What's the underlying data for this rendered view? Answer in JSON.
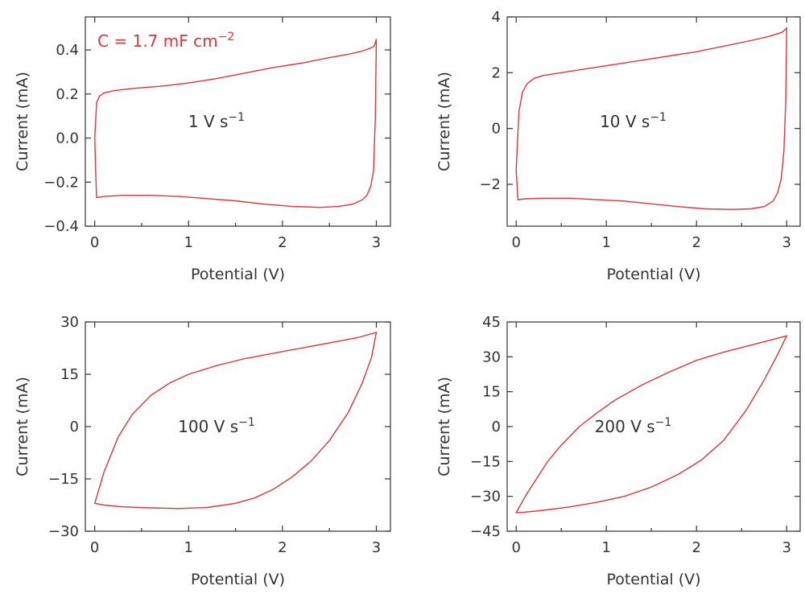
{
  "colors": {
    "curve": "#d9363e",
    "axis": "#333333"
  },
  "chart_data": [
    {
      "type": "line",
      "scan_rate_label": "1 V s−1",
      "capacitance_label": "C = 1.7 mF cm−2",
      "xlabel": "Potential (V)",
      "ylabel": "Current (mA)",
      "xlim": [
        -0.1,
        3.15
      ],
      "ylim": [
        -0.4,
        0.55
      ],
      "xticks": [
        0,
        1,
        2,
        3
      ],
      "yticks": [
        -0.4,
        -0.2,
        0.0,
        0.2,
        0.4
      ],
      "ytick_labels": [
        "−0.4",
        "−0.2",
        "0.0",
        "0.2",
        "0.4"
      ],
      "series": [
        {
          "x": [
            0,
            0.02,
            0.05,
            0.1,
            0.2,
            0.4,
            0.7,
            1.0,
            1.3,
            1.6,
            1.9,
            2.2,
            2.5,
            2.7,
            2.85,
            2.95,
            2.98,
            3.0,
            2.99,
            2.97,
            2.94,
            2.9,
            2.85,
            2.75,
            2.6,
            2.4,
            2.1,
            1.8,
            1.5,
            1.2,
            0.9,
            0.6,
            0.3,
            0.1,
            0.02,
            0.01,
            0
          ],
          "y": [
            0.0,
            0.16,
            0.19,
            0.205,
            0.215,
            0.225,
            0.235,
            0.25,
            0.27,
            0.295,
            0.32,
            0.34,
            0.365,
            0.38,
            0.395,
            0.41,
            0.42,
            0.45,
            0.1,
            -0.15,
            -0.22,
            -0.26,
            -0.28,
            -0.3,
            -0.31,
            -0.315,
            -0.31,
            -0.3,
            -0.285,
            -0.275,
            -0.265,
            -0.26,
            -0.26,
            -0.265,
            -0.27,
            -0.15,
            0.0
          ]
        }
      ]
    },
    {
      "type": "line",
      "scan_rate_label": "10 V s−1",
      "xlabel": "Potential (V)",
      "ylabel": "Current (mA)",
      "xlim": [
        -0.1,
        3.15
      ],
      "ylim": [
        -3.5,
        4.0
      ],
      "xticks": [
        0,
        1,
        2,
        3
      ],
      "yticks": [
        -2,
        0,
        2,
        4
      ],
      "ytick_labels": [
        "−2",
        "0",
        "2",
        "4"
      ],
      "series": [
        {
          "x": [
            0,
            0.03,
            0.07,
            0.12,
            0.2,
            0.3,
            0.5,
            0.8,
            1.1,
            1.4,
            1.7,
            2.0,
            2.3,
            2.6,
            2.8,
            2.95,
            3.0,
            2.99,
            2.97,
            2.94,
            2.9,
            2.85,
            2.75,
            2.6,
            2.4,
            2.1,
            1.8,
            1.5,
            1.2,
            0.9,
            0.6,
            0.3,
            0.1,
            0.02,
            0
          ],
          "y": [
            -1.5,
            0.6,
            1.3,
            1.6,
            1.8,
            1.9,
            2.0,
            2.15,
            2.3,
            2.45,
            2.6,
            2.75,
            2.95,
            3.15,
            3.3,
            3.45,
            3.6,
            1.0,
            -0.8,
            -1.8,
            -2.3,
            -2.6,
            -2.8,
            -2.88,
            -2.9,
            -2.88,
            -2.8,
            -2.7,
            -2.6,
            -2.55,
            -2.5,
            -2.5,
            -2.52,
            -2.55,
            -1.5
          ]
        }
      ]
    },
    {
      "type": "line",
      "scan_rate_label": "100 V s−1",
      "xlabel": "Potential (V)",
      "ylabel": "Current (mA)",
      "xlim": [
        -0.1,
        3.15
      ],
      "ylim": [
        -30,
        30
      ],
      "xticks": [
        0,
        1,
        2,
        3
      ],
      "yticks": [
        -30,
        -15,
        0,
        15,
        30
      ],
      "ytick_labels": [
        "−30",
        "−15",
        "0",
        "15",
        "30"
      ],
      "series": [
        {
          "x": [
            0,
            0.1,
            0.25,
            0.4,
            0.6,
            0.8,
            1.0,
            1.3,
            1.6,
            2.0,
            2.4,
            2.8,
            3.0,
            2.95,
            2.85,
            2.7,
            2.5,
            2.3,
            2.1,
            1.9,
            1.7,
            1.5,
            1.2,
            0.9,
            0.6,
            0.3,
            0.1,
            0
          ],
          "y": [
            -22,
            -13,
            -3,
            3.5,
            9,
            12.5,
            15,
            17.5,
            19.5,
            21.5,
            23.5,
            25.5,
            27,
            20,
            12.5,
            4,
            -4,
            -10,
            -14.5,
            -18,
            -20.5,
            -22,
            -23.2,
            -23.5,
            -23.3,
            -23,
            -22.5,
            -22
          ]
        }
      ]
    },
    {
      "type": "line",
      "scan_rate_label": "200 V s−1",
      "xlabel": "Potential (V)",
      "ylabel": "Current (mA)",
      "xlim": [
        -0.1,
        3.15
      ],
      "ylim": [
        -45,
        45
      ],
      "xticks": [
        0,
        1,
        2,
        3
      ],
      "yticks": [
        -45,
        -30,
        -15,
        0,
        15,
        30,
        45
      ],
      "ytick_labels": [
        "−45",
        "−30",
        "−15",
        "0",
        "15",
        "30",
        "45"
      ],
      "series": [
        {
          "x": [
            0,
            0.1,
            0.2,
            0.35,
            0.5,
            0.7,
            0.9,
            1.1,
            1.4,
            1.7,
            2.0,
            2.3,
            2.6,
            2.8,
            3.0,
            2.9,
            2.75,
            2.55,
            2.3,
            2.05,
            1.8,
            1.5,
            1.2,
            0.9,
            0.6,
            0.3,
            0.1,
            0
          ],
          "y": [
            -37,
            -30,
            -24,
            -15,
            -8,
            0,
            6,
            11.5,
            18,
            23.5,
            28.5,
            32,
            35,
            37,
            39,
            31,
            20,
            7,
            -6,
            -14.5,
            -20.5,
            -26,
            -30,
            -32.5,
            -34.5,
            -36,
            -36.8,
            -37
          ]
        }
      ]
    }
  ]
}
